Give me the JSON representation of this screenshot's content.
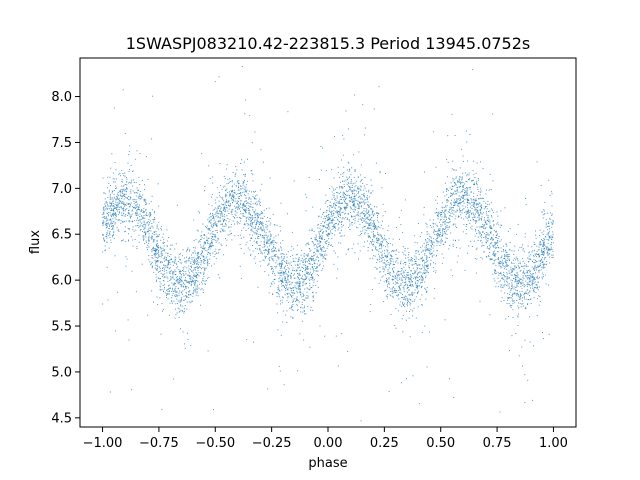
{
  "chart_data": {
    "type": "scatter",
    "title": "1SWASPJ083210.42-223815.3 Period 13945.0752s",
    "xlabel": "phase",
    "ylabel": "flux",
    "xlim": [
      -1.1,
      1.1
    ],
    "ylim": [
      4.4,
      8.42
    ],
    "xticks": [
      -1.0,
      -0.75,
      -0.5,
      -0.25,
      0.0,
      0.25,
      0.5,
      0.75,
      1.0
    ],
    "xtick_labels": [
      "−1.00",
      "−0.75",
      "−0.50",
      "−0.25",
      "0.00",
      "0.25",
      "0.50",
      "0.75",
      "1.00"
    ],
    "yticks": [
      4.5,
      5.0,
      5.5,
      6.0,
      6.5,
      7.0,
      7.5,
      8.0
    ],
    "ytick_labels": [
      "4.5",
      "5.0",
      "5.5",
      "6.0",
      "6.5",
      "7.0",
      "7.5",
      "8.0"
    ],
    "grid": false,
    "marker_color": "#1f77b4",
    "phase_range": [
      -1.0,
      1.0
    ],
    "lightcurve_model": {
      "mean_flux": 6.42,
      "amplitude": 0.45,
      "cycles_per_unit_phase": 2,
      "peak_phase": 0.1,
      "scatter_sigma": 0.17
    }
  }
}
